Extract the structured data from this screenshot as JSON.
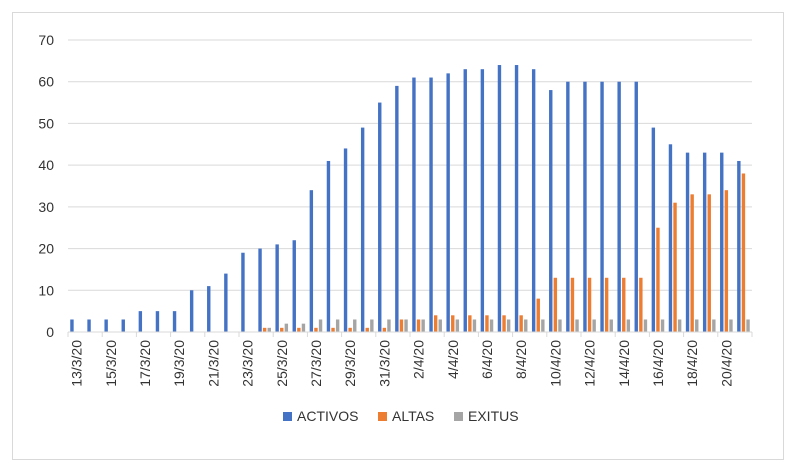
{
  "chart_data": {
    "type": "bar",
    "title": "",
    "xlabel": "",
    "ylabel": "",
    "ylim": [
      0,
      70
    ],
    "yticks": [
      0,
      10,
      20,
      30,
      40,
      50,
      60,
      70
    ],
    "grid": true,
    "legend_position": "bottom",
    "categories": [
      "13/3/20",
      "14/3/20",
      "15/3/20",
      "16/3/20",
      "17/3/20",
      "18/3/20",
      "19/3/20",
      "20/3/20",
      "21/3/20",
      "22/3/20",
      "23/3/20",
      "24/3/20",
      "25/3/20",
      "26/3/20",
      "27/3/20",
      "28/3/20",
      "29/3/20",
      "30/3/20",
      "31/3/20",
      "1/4/20",
      "2/4/20",
      "3/4/20",
      "4/4/20",
      "5/4/20",
      "6/4/20",
      "7/4/20",
      "8/4/20",
      "9/4/20",
      "10/4/20",
      "11/4/20",
      "12/4/20",
      "13/4/20",
      "14/4/20",
      "15/4/20",
      "16/4/20",
      "17/4/20",
      "18/4/20",
      "19/4/20",
      "20/4/20",
      "21/4/20"
    ],
    "xtick_labels": [
      "13/3/20",
      "15/3/20",
      "17/3/20",
      "19/3/20",
      "21/3/20",
      "23/3/20",
      "25/3/20",
      "27/3/20",
      "29/3/20",
      "31/3/20",
      "2/4/20",
      "4/4/20",
      "6/4/20",
      "8/4/20",
      "10/4/20",
      "12/4/20",
      "14/4/20",
      "16/4/20",
      "18/4/20",
      "20/4/20"
    ],
    "series": [
      {
        "name": "ACTIVOS",
        "color": "#4472C4",
        "values": [
          3,
          3,
          3,
          3,
          5,
          5,
          5,
          10,
          11,
          14,
          19,
          20,
          21,
          22,
          34,
          41,
          44,
          49,
          55,
          59,
          61,
          61,
          62,
          63,
          63,
          64,
          64,
          63,
          58,
          60,
          60,
          60,
          60,
          60,
          49,
          45,
          43,
          43,
          43,
          41
        ]
      },
      {
        "name": "ALTAS",
        "color": "#ED7D31",
        "values": [
          0,
          0,
          0,
          0,
          0,
          0,
          0,
          0,
          0,
          0,
          0,
          1,
          1,
          1,
          1,
          1,
          1,
          1,
          1,
          3,
          3,
          4,
          4,
          4,
          4,
          4,
          4,
          8,
          13,
          13,
          13,
          13,
          13,
          13,
          25,
          31,
          33,
          33,
          34,
          38
        ]
      },
      {
        "name": "EXITUS",
        "color": "#A5A5A5",
        "values": [
          0,
          0,
          0,
          0,
          0,
          0,
          0,
          0,
          0,
          0,
          0,
          1,
          2,
          2,
          3,
          3,
          3,
          3,
          3,
          3,
          3,
          3,
          3,
          3,
          3,
          3,
          3,
          3,
          3,
          3,
          3,
          3,
          3,
          3,
          3,
          3,
          3,
          3,
          3,
          3
        ]
      }
    ]
  }
}
